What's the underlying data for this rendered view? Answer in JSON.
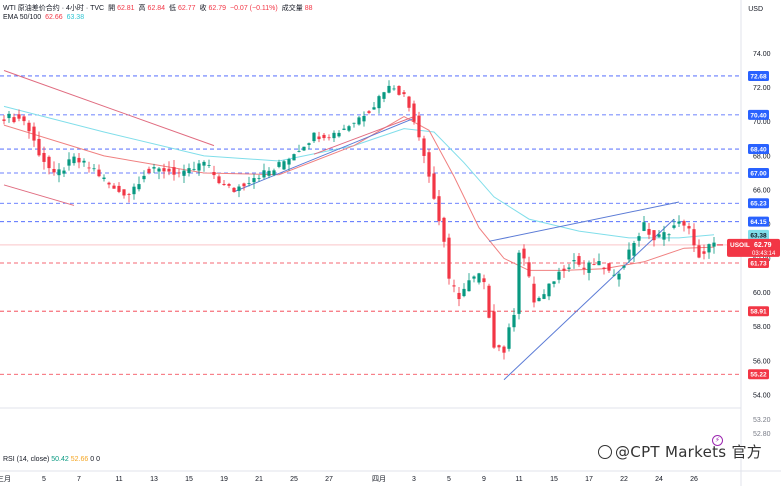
{
  "header": {
    "symbol": "WTI 原油差价合约 · 4小时 · TVC",
    "open_label": "開",
    "open": "62.81",
    "high_label": "高",
    "high": "62.84",
    "low_label": "低",
    "low": "62.77",
    "close_label": "收",
    "close": "62.79",
    "change": "−0.07 (−0.11%)",
    "volume_label": "成交量",
    "volume": "88",
    "ema_label": "EMA 50/100",
    "ema50": "62.66",
    "ema100": "63.38",
    "currency": "USD"
  },
  "rsi": {
    "label": "RSI (14, close)",
    "v1": "50.42",
    "v2": "52.66",
    "v3": "0",
    "v4": "0"
  },
  "watermark": "@CPT Markets 官方",
  "colors": {
    "up": "#089981",
    "down": "#f23645",
    "ema50": "#f08080",
    "ema100": "#80deea",
    "trend_blue": "#5b7bd6",
    "trend_red": "#e06c80",
    "dashed_blue": "#3d5afe",
    "dashed_red": "#f23645"
  },
  "chart_data": {
    "type": "candlestick",
    "ylim": [
      52.6,
      74.7
    ],
    "y_ticks": [
      "74.00",
      "72.00",
      "70.00",
      "68.00",
      "66.00",
      "64.00",
      "62.00",
      "60.00",
      "58.00",
      "56.00",
      "54.00"
    ],
    "x_ticks": [
      "三月",
      "5",
      "7",
      "11",
      "13",
      "15",
      "19",
      "21",
      "25",
      "27",
      "四月",
      "3",
      "5",
      "9",
      "11",
      "15",
      "17",
      "22",
      "24",
      "26"
    ],
    "x_tick_index": [
      0,
      8,
      15,
      23,
      30,
      37,
      44,
      51,
      58,
      65,
      75,
      82,
      89,
      96,
      103,
      110,
      117,
      124,
      131,
      138
    ],
    "price_labels": [
      {
        "text": "72.68",
        "value": 72.68,
        "style": "blue"
      },
      {
        "text": "70.40",
        "value": 70.4,
        "style": "blue"
      },
      {
        "text": "68.40",
        "value": 68.4,
        "style": "blue"
      },
      {
        "text": "67.00",
        "value": 67.0,
        "style": "blue"
      },
      {
        "text": "65.23",
        "value": 65.23,
        "style": "blue"
      },
      {
        "text": "64.15",
        "value": 64.15,
        "style": "blue"
      },
      {
        "text": "63.38",
        "value": 63.38,
        "style": "cyan"
      },
      {
        "text": "62.66",
        "value": 62.66,
        "style": "pink"
      },
      {
        "text": "61.73",
        "value": 61.73,
        "style": "red"
      },
      {
        "text": "58.91",
        "value": 58.91,
        "style": "red"
      },
      {
        "text": "55.22",
        "value": 55.22,
        "style": "red"
      }
    ],
    "last_price": {
      "symbol": "USOIL",
      "price": "62.79",
      "countdown": "03:43:14",
      "value": 62.79
    },
    "h_levels_blue": [
      72.68,
      70.4,
      68.4,
      67.0,
      65.23,
      64.15
    ],
    "h_levels_red": [
      61.73,
      58.91,
      55.22
    ],
    "key_points": [
      [
        0,
        70.3
      ],
      [
        4,
        70.1
      ],
      [
        7,
        68.2
      ],
      [
        10,
        66.8
      ],
      [
        14,
        67.8
      ],
      [
        18,
        67.2
      ],
      [
        22,
        66.0
      ],
      [
        25,
        65.8
      ],
      [
        28,
        67.0
      ],
      [
        32,
        67.2
      ],
      [
        36,
        66.9
      ],
      [
        40,
        67.6
      ],
      [
        44,
        66.2
      ],
      [
        46,
        66.0
      ],
      [
        50,
        66.8
      ],
      [
        54,
        67.2
      ],
      [
        58,
        68.2
      ],
      [
        62,
        69.2
      ],
      [
        66,
        69.3
      ],
      [
        70,
        70.0
      ],
      [
        74,
        71.0
      ],
      [
        76,
        71.9
      ],
      [
        78,
        72.1
      ],
      [
        80,
        71.5
      ],
      [
        82,
        70.2
      ],
      [
        84,
        68.2
      ],
      [
        86,
        65.5
      ],
      [
        88,
        63.0
      ],
      [
        89,
        60.6
      ],
      [
        91,
        59.8
      ],
      [
        93,
        60.6
      ],
      [
        95,
        61.0
      ],
      [
        96,
        60.4
      ],
      [
        98,
        57.0
      ],
      [
        100,
        56.6
      ],
      [
        102,
        58.9
      ],
      [
        103,
        62.5
      ],
      [
        104,
        62.0
      ],
      [
        106,
        59.5
      ],
      [
        108,
        59.8
      ],
      [
        110,
        60.8
      ],
      [
        112,
        61.5
      ],
      [
        114,
        61.9
      ],
      [
        116,
        61.4
      ],
      [
        118,
        61.7
      ],
      [
        120,
        61.5
      ],
      [
        122,
        60.8
      ],
      [
        124,
        61.8
      ],
      [
        126,
        63.0
      ],
      [
        128,
        63.9
      ],
      [
        130,
        63.1
      ],
      [
        132,
        63.4
      ],
      [
        134,
        63.9
      ],
      [
        136,
        64.1
      ],
      [
        137,
        63.6
      ],
      [
        138,
        62.6
      ],
      [
        139,
        62.2
      ],
      [
        140,
        62.3
      ],
      [
        141,
        62.7
      ],
      [
        142,
        62.79
      ]
    ],
    "ema50": [
      [
        0,
        69.8
      ],
      [
        20,
        68.0
      ],
      [
        40,
        67.0
      ],
      [
        55,
        66.9
      ],
      [
        70,
        68.6
      ],
      [
        80,
        70.3
      ],
      [
        85,
        69.5
      ],
      [
        90,
        66.8
      ],
      [
        95,
        63.8
      ],
      [
        100,
        62.0
      ],
      [
        105,
        61.3
      ],
      [
        112,
        61.3
      ],
      [
        120,
        61.4
      ],
      [
        128,
        61.8
      ],
      [
        136,
        62.6
      ],
      [
        142,
        62.66
      ]
    ],
    "ema100": [
      [
        0,
        70.9
      ],
      [
        20,
        69.4
      ],
      [
        40,
        68.0
      ],
      [
        55,
        67.7
      ],
      [
        70,
        68.6
      ],
      [
        80,
        69.6
      ],
      [
        86,
        69.4
      ],
      [
        92,
        67.6
      ],
      [
        98,
        65.6
      ],
      [
        105,
        64.3
      ],
      [
        115,
        63.6
      ],
      [
        125,
        63.2
      ],
      [
        135,
        63.2
      ],
      [
        142,
        63.38
      ]
    ],
    "trendlines": [
      {
        "color": "red",
        "from": [
          0,
          73.0
        ],
        "to": [
          42,
          68.6
        ]
      },
      {
        "color": "red",
        "from": [
          0,
          66.3
        ],
        "to": [
          14,
          65.1
        ]
      },
      {
        "color": "blue",
        "from": [
          46,
          65.9
        ],
        "to": [
          82,
          70.2
        ]
      },
      {
        "color": "red",
        "from": [
          62,
          68.1
        ],
        "to": [
          82,
          70.3
        ]
      },
      {
        "color": "blue",
        "from": [
          97,
          63.0
        ],
        "to": [
          135,
          65.3
        ]
      },
      {
        "color": "blue",
        "from": [
          100,
          54.9
        ],
        "to": [
          134,
          64.3
        ]
      }
    ]
  }
}
